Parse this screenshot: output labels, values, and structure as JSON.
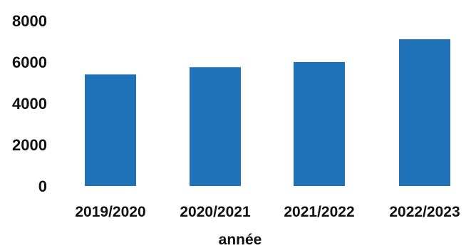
{
  "chart_data": {
    "type": "bar",
    "categories": [
      "2019/2020",
      "2020/2021",
      "2021/2022",
      "2022/2023"
    ],
    "values": [
      5400,
      5750,
      6000,
      7100
    ],
    "xlabel": "année",
    "ylabel": "",
    "ylim": [
      0,
      8000
    ],
    "yticks": [
      "0",
      "2000",
      "4000",
      "6000",
      "8000"
    ],
    "grid": false,
    "legend": "none",
    "bar_color": "#1f72b8"
  }
}
